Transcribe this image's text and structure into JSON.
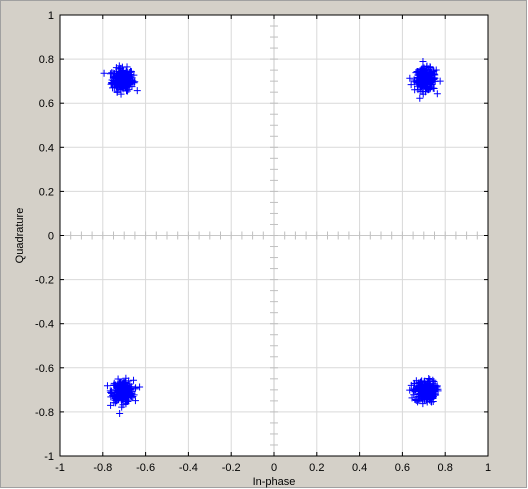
{
  "chart_data": {
    "type": "scatter",
    "title": "",
    "xlabel": "In-phase",
    "ylabel": "Quadrature",
    "xlim": [
      -1,
      1
    ],
    "ylim": [
      -1,
      1
    ],
    "xticks": [
      "-1",
      "-0.8",
      "-0.6",
      "-0.4",
      "-0.2",
      "0",
      "0.2",
      "0.4",
      "0.6",
      "0.8",
      "1"
    ],
    "yticks": [
      "-1",
      "-0.8",
      "-0.6",
      "-0.4",
      "-0.2",
      "0",
      "0.2",
      "0.4",
      "0.6",
      "0.8",
      "1"
    ],
    "grid": true,
    "marker": "+",
    "marker_color": "#0000ff",
    "background_color": "#d4d0c8",
    "axes_color": "#ffffff",
    "clusters": [
      {
        "center": [
          -0.707,
          0.707
        ],
        "spread": 0.025
      },
      {
        "center": [
          0.707,
          0.707
        ],
        "spread": 0.025
      },
      {
        "center": [
          -0.707,
          -0.707
        ],
        "spread": 0.025
      },
      {
        "center": [
          0.707,
          -0.707
        ],
        "spread": 0.025
      }
    ],
    "points_per_cluster": 220
  }
}
